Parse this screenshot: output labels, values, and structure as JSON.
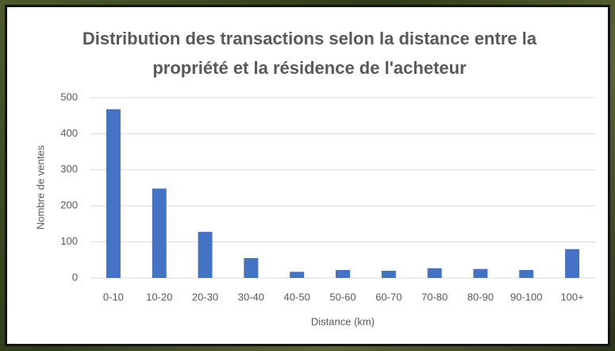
{
  "chart_data": {
    "type": "bar",
    "title": "Distribution des transactions selon la distance entre la propriété et la résidence de l'acheteur",
    "x_label": "Distance (km)",
    "y_label": "Nombre de ventes",
    "categories": [
      "0-10",
      "10-20",
      "20-30",
      "30-40",
      "40-50",
      "50-60",
      "60-70",
      "70-80",
      "80-90",
      "90-100",
      "100+"
    ],
    "values": [
      468,
      248,
      128,
      55,
      17,
      22,
      20,
      27,
      25,
      22,
      80
    ],
    "color": "#4472c4",
    "ylim": [
      0,
      500
    ],
    "yticks": [
      0,
      100,
      200,
      300,
      400,
      500
    ],
    "grid": true
  }
}
